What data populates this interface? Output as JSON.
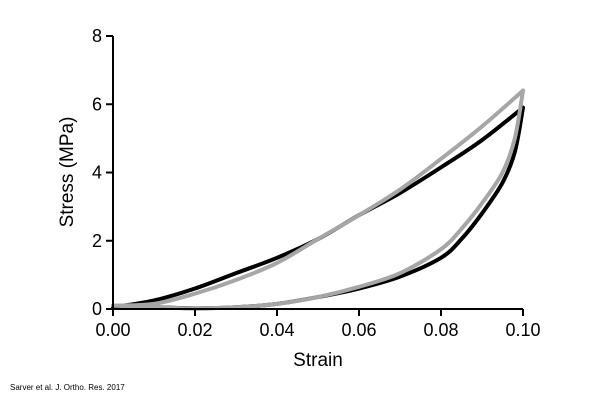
{
  "chart_data": {
    "type": "line",
    "title": "",
    "xlabel": "Strain",
    "ylabel": "Stress (MPa)",
    "xlim": [
      0,
      0.1
    ],
    "ylim": [
      0,
      8
    ],
    "xticks": [
      "0.00",
      "0.02",
      "0.04",
      "0.06",
      "0.08",
      "0.10"
    ],
    "yticks": [
      "0",
      "2",
      "4",
      "6",
      "8"
    ],
    "grid": false,
    "legend": "none",
    "series": [
      {
        "color": "#000000",
        "loading": {
          "x": [
            0.0,
            0.01,
            0.02,
            0.03,
            0.04,
            0.05,
            0.06,
            0.07,
            0.08,
            0.09,
            0.1
          ],
          "y": [
            0.05,
            0.25,
            0.6,
            1.05,
            1.5,
            2.05,
            2.75,
            3.4,
            4.15,
            4.95,
            5.9
          ]
        },
        "unloading": {
          "x": [
            0.1,
            0.098,
            0.095,
            0.09,
            0.085,
            0.08,
            0.07,
            0.06,
            0.05,
            0.04,
            0.03,
            0.02,
            0.01,
            0.0
          ],
          "y": [
            5.9,
            4.6,
            3.7,
            2.8,
            2.05,
            1.5,
            0.95,
            0.6,
            0.35,
            0.15,
            0.05,
            0.02,
            0.05,
            0.05
          ]
        }
      },
      {
        "color": "#a6a6a6",
        "loading": {
          "x": [
            0.0,
            0.01,
            0.02,
            0.03,
            0.04,
            0.05,
            0.06,
            0.07,
            0.08,
            0.09,
            0.1
          ],
          "y": [
            0.1,
            0.15,
            0.45,
            0.85,
            1.35,
            2.05,
            2.75,
            3.5,
            4.4,
            5.35,
            6.4
          ]
        },
        "unloading": {
          "x": [
            0.1,
            0.098,
            0.095,
            0.09,
            0.085,
            0.08,
            0.07,
            0.06,
            0.05,
            0.04,
            0.03,
            0.02,
            0.01,
            0.0
          ],
          "y": [
            6.4,
            5.0,
            4.0,
            3.1,
            2.35,
            1.75,
            1.05,
            0.65,
            0.35,
            0.15,
            0.05,
            0.02,
            0.05,
            0.1
          ]
        }
      }
    ]
  },
  "citation": "Sarver et al. J. Ortho. Res. 2017"
}
